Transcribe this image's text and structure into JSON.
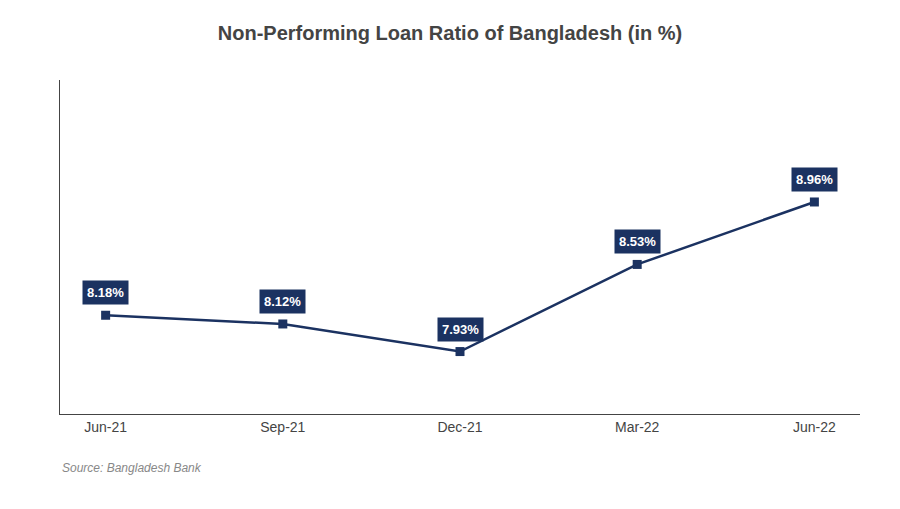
{
  "chart_data": {
    "type": "line",
    "title": "Non-Performing Loan Ratio of Bangladesh (in %)",
    "categories": [
      "Jun-21",
      "Sep-21",
      "Dec-21",
      "Mar-22",
      "Jun-22"
    ],
    "values": [
      8.18,
      8.12,
      7.93,
      8.53,
      8.96
    ],
    "value_labels": [
      "8.18%",
      "8.12%",
      "7.93%",
      "8.53%",
      "8.96%"
    ],
    "data_labels": true,
    "color": "#1b3261",
    "marker": "square",
    "ylim": [
      7.5,
      9.8
    ],
    "tick_labels": "x",
    "grid": false,
    "annotations": [
      "Source: Bangladesh Bank"
    ]
  }
}
